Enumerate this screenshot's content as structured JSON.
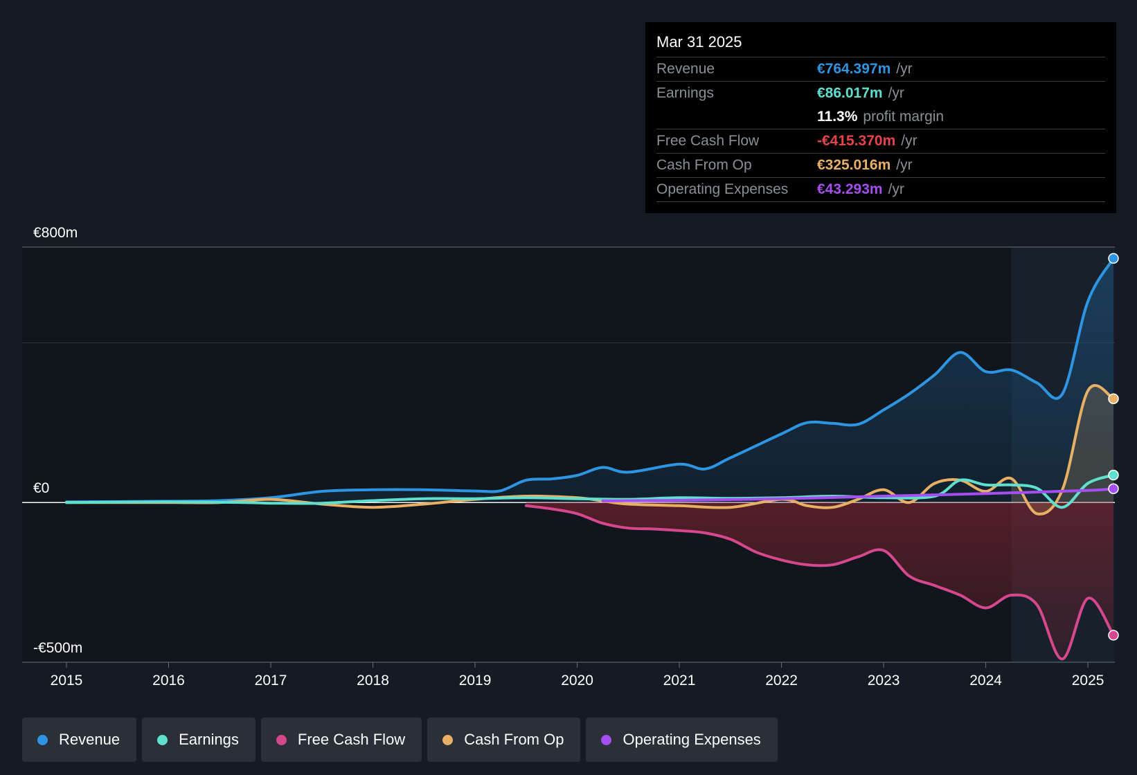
{
  "tooltip": {
    "date": "Mar 31 2025",
    "rows": [
      {
        "label": "Revenue",
        "value": "€764.397m",
        "unit": "/yr",
        "color": "#2e95e3"
      },
      {
        "label": "Earnings",
        "value": "€86.017m",
        "unit": "/yr",
        "color": "#5fe0cf"
      },
      {
        "label": "",
        "value": "11.3%",
        "unit": "profit margin",
        "color": "#ffffff"
      },
      {
        "label": "Free Cash Flow",
        "value": "-€415.370m",
        "unit": "/yr",
        "color": "#e8434b"
      },
      {
        "label": "Cash From Op",
        "value": "€325.016m",
        "unit": "/yr",
        "color": "#e8b064"
      },
      {
        "label": "Operating Expenses",
        "value": "€43.293m",
        "unit": "/yr",
        "color": "#a64ff0"
      }
    ]
  },
  "legend": [
    {
      "label": "Revenue",
      "color": "#2e95e3"
    },
    {
      "label": "Earnings",
      "color": "#5fe0cf"
    },
    {
      "label": "Free Cash Flow",
      "color": "#d6488e"
    },
    {
      "label": "Cash From Op",
      "color": "#e8b064"
    },
    {
      "label": "Operating Expenses",
      "color": "#a64ff0"
    }
  ],
  "chart_data": {
    "type": "area",
    "title": "",
    "xlabel": "",
    "ylabel": "",
    "ylim": [
      -500,
      800
    ],
    "y_tick_labels": [
      {
        "value": 800,
        "label": "€800m"
      },
      {
        "value": 0,
        "label": "€0"
      },
      {
        "value": -500,
        "label": "-€500m"
      }
    ],
    "gridlines": [
      800,
      500,
      0,
      -500
    ],
    "xlim": [
      2015,
      2025.25
    ],
    "x_ticks": [
      2015,
      2016,
      2017,
      2018,
      2019,
      2020,
      2021,
      2022,
      2023,
      2024,
      2025
    ],
    "x_tick_labels": [
      "2015",
      "2016",
      "2017",
      "2018",
      "2019",
      "2020",
      "2021",
      "2022",
      "2023",
      "2024",
      "2025"
    ],
    "highlight_start": 2024.25,
    "series": [
      {
        "name": "Revenue",
        "color": "#2e95e3",
        "fill": true,
        "points": [
          [
            2015,
            2
          ],
          [
            2016,
            4
          ],
          [
            2016.5,
            6
          ],
          [
            2017,
            15
          ],
          [
            2017.5,
            35
          ],
          [
            2018,
            40
          ],
          [
            2018.5,
            40
          ],
          [
            2019,
            36
          ],
          [
            2019.25,
            37
          ],
          [
            2019.5,
            70
          ],
          [
            2019.75,
            74
          ],
          [
            2020,
            85
          ],
          [
            2020.25,
            110
          ],
          [
            2020.5,
            95
          ],
          [
            2021,
            120
          ],
          [
            2021.25,
            105
          ],
          [
            2021.5,
            140
          ],
          [
            2022,
            215
          ],
          [
            2022.25,
            250
          ],
          [
            2022.5,
            248
          ],
          [
            2022.75,
            245
          ],
          [
            2023,
            290
          ],
          [
            2023.25,
            340
          ],
          [
            2023.5,
            400
          ],
          [
            2023.75,
            470
          ],
          [
            2024,
            410
          ],
          [
            2024.25,
            415
          ],
          [
            2024.5,
            375
          ],
          [
            2024.75,
            340
          ],
          [
            2025,
            630
          ],
          [
            2025.25,
            764.397
          ]
        ]
      },
      {
        "name": "Earnings",
        "color": "#5fe0cf",
        "fill": false,
        "points": [
          [
            2015,
            0
          ],
          [
            2016,
            2
          ],
          [
            2016.75,
            0
          ],
          [
            2017,
            -2
          ],
          [
            2017.5,
            -2
          ],
          [
            2018,
            6
          ],
          [
            2018.5,
            12
          ],
          [
            2019,
            12
          ],
          [
            2019.5,
            15
          ],
          [
            2020,
            12
          ],
          [
            2020.5,
            10
          ],
          [
            2021,
            15
          ],
          [
            2021.5,
            13
          ],
          [
            2022,
            15
          ],
          [
            2022.5,
            20
          ],
          [
            2023,
            15
          ],
          [
            2023.5,
            20
          ],
          [
            2023.75,
            70
          ],
          [
            2024,
            55
          ],
          [
            2024.25,
            55
          ],
          [
            2024.5,
            45
          ],
          [
            2024.75,
            -15
          ],
          [
            2025,
            60
          ],
          [
            2025.25,
            86.017
          ]
        ]
      },
      {
        "name": "Free Cash Flow",
        "color": "#d6488e",
        "fill": true,
        "points": [
          [
            2019.5,
            -10
          ],
          [
            2019.75,
            -20
          ],
          [
            2020,
            -35
          ],
          [
            2020.25,
            -65
          ],
          [
            2020.5,
            -80
          ],
          [
            2020.75,
            -83
          ],
          [
            2021,
            -88
          ],
          [
            2021.25,
            -95
          ],
          [
            2021.5,
            -115
          ],
          [
            2021.75,
            -155
          ],
          [
            2022,
            -180
          ],
          [
            2022.25,
            -195
          ],
          [
            2022.5,
            -195
          ],
          [
            2022.75,
            -170
          ],
          [
            2023,
            -150
          ],
          [
            2023.25,
            -230
          ],
          [
            2023.5,
            -260
          ],
          [
            2023.75,
            -290
          ],
          [
            2024,
            -330
          ],
          [
            2024.25,
            -290
          ],
          [
            2024.5,
            -320
          ],
          [
            2024.75,
            -490
          ],
          [
            2025,
            -300
          ],
          [
            2025.25,
            -415.37
          ]
        ]
      },
      {
        "name": "Cash From Op",
        "color": "#e8b064",
        "fill": true,
        "points": [
          [
            2015,
            0
          ],
          [
            2016,
            0
          ],
          [
            2016.5,
            0
          ],
          [
            2017,
            10
          ],
          [
            2017.5,
            -5
          ],
          [
            2018,
            -15
          ],
          [
            2018.5,
            -5
          ],
          [
            2019,
            10
          ],
          [
            2019.5,
            20
          ],
          [
            2020,
            15
          ],
          [
            2020.25,
            5
          ],
          [
            2020.5,
            -5
          ],
          [
            2021,
            -10
          ],
          [
            2021.5,
            -15
          ],
          [
            2022,
            10
          ],
          [
            2022.25,
            -10
          ],
          [
            2022.5,
            -15
          ],
          [
            2022.75,
            10
          ],
          [
            2023,
            40
          ],
          [
            2023.25,
            0
          ],
          [
            2023.5,
            60
          ],
          [
            2023.75,
            70
          ],
          [
            2024,
            35
          ],
          [
            2024.25,
            75
          ],
          [
            2024.5,
            -35
          ],
          [
            2024.75,
            40
          ],
          [
            2025,
            350
          ],
          [
            2025.25,
            325.016
          ]
        ]
      },
      {
        "name": "Operating Expenses",
        "color": "#a64ff0",
        "fill": false,
        "points": [
          [
            2020.25,
            5
          ],
          [
            2021,
            7
          ],
          [
            2022,
            12
          ],
          [
            2023,
            20
          ],
          [
            2024,
            28
          ],
          [
            2025,
            38
          ],
          [
            2025.25,
            43.293
          ]
        ]
      }
    ]
  }
}
